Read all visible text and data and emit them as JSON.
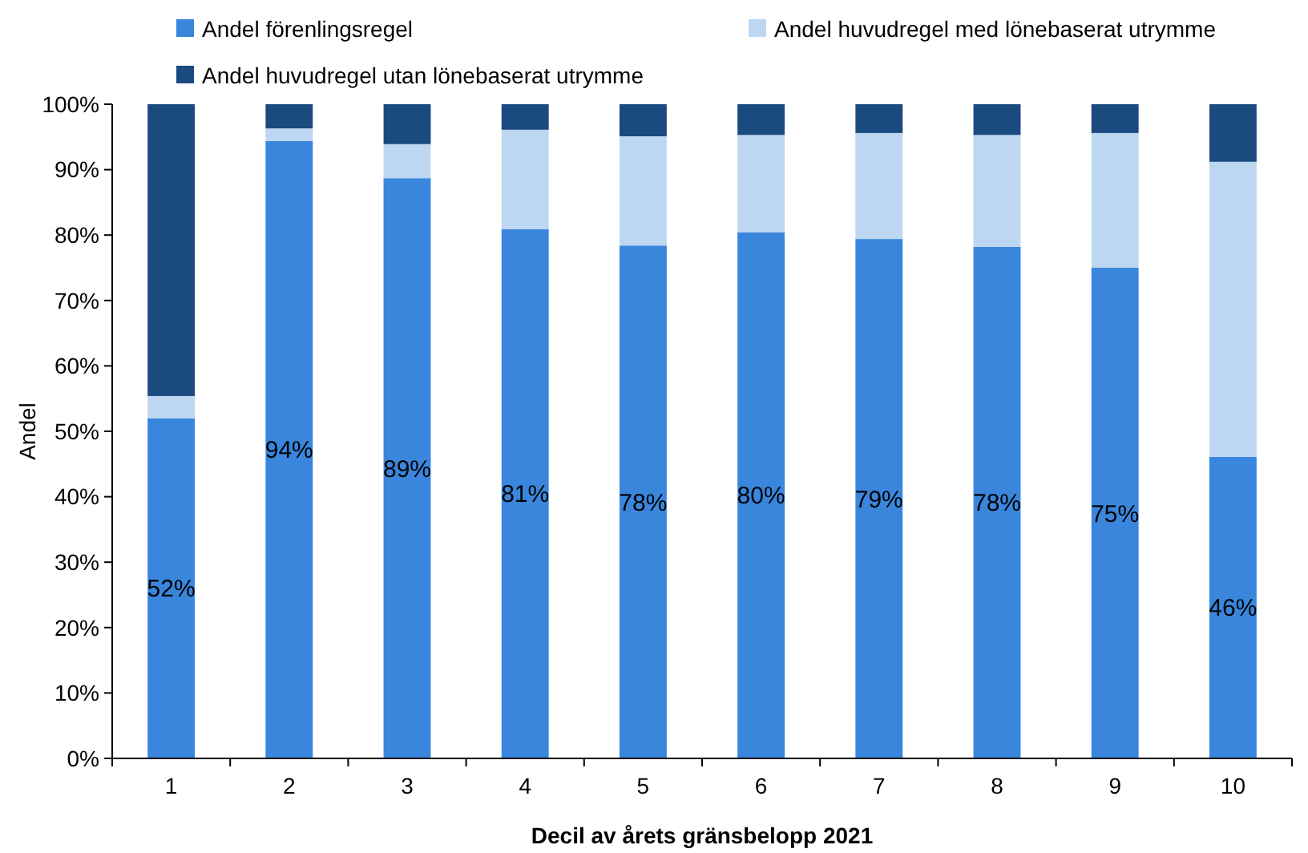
{
  "chart_data": {
    "type": "bar",
    "stacked": true,
    "xlabel": "Decil av årets gränsbelopp 2021",
    "ylabel": "Andel",
    "categories": [
      "1",
      "2",
      "3",
      "4",
      "5",
      "6",
      "7",
      "8",
      "9",
      "10"
    ],
    "series": [
      {
        "name": "Andel förenlingsregel",
        "color": "#3a86dd",
        "values": [
          52,
          94.4,
          88.7,
          80.9,
          78.4,
          80.4,
          79.4,
          78.2,
          75,
          46.1
        ],
        "value_labels": [
          "52%",
          "94%",
          "89%",
          "81%",
          "78%",
          "80%",
          "79%",
          "78%",
          "75%",
          "46%"
        ]
      },
      {
        "name": "Andel huvudregel med lönebaserat utrymme",
        "color": "#bdd7f2",
        "values": [
          3.4,
          1.9,
          5.2,
          15.2,
          16.7,
          14.9,
          16.2,
          17.1,
          20.6,
          45.1
        ]
      },
      {
        "name": "Andel huvudregel utan lönebaserat utrymme",
        "color": "#1a4a80",
        "values": [
          44.6,
          3.7,
          6.1,
          3.9,
          4.9,
          4.7,
          4.4,
          4.7,
          4.4,
          8.8
        ]
      }
    ],
    "ylim": [
      0,
      100
    ],
    "yticks": [
      {
        "value": 0,
        "label": "0%"
      },
      {
        "value": 10,
        "label": "10%"
      },
      {
        "value": 20,
        "label": "20%"
      },
      {
        "value": 30,
        "label": "30%"
      },
      {
        "value": 40,
        "label": "40%"
      },
      {
        "value": 50,
        "label": "50%"
      },
      {
        "value": 60,
        "label": "60%"
      },
      {
        "value": 70,
        "label": "70%"
      },
      {
        "value": 80,
        "label": "80%"
      },
      {
        "value": 90,
        "label": "90%"
      },
      {
        "value": 100,
        "label": "100%"
      }
    ],
    "legend": "top",
    "grid": false
  }
}
